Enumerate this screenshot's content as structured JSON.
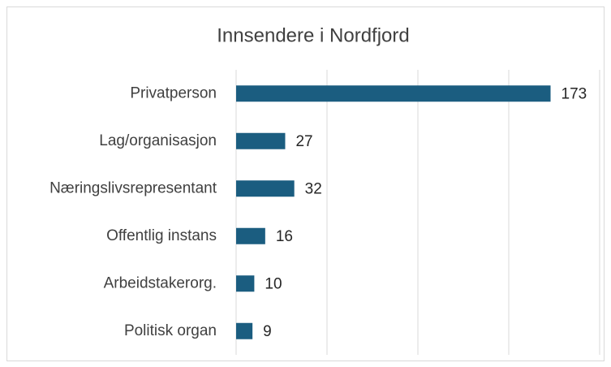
{
  "chart_data": {
    "type": "bar",
    "orientation": "horizontal",
    "title": "Innsendere i Nordfjord",
    "categories": [
      "Privatperson",
      "Lag/organisasjon",
      "Næringslivsrepresentant",
      "Offentlig instans",
      "Arbeidstakerorg.",
      "Politisk organ"
    ],
    "values": [
      173,
      27,
      32,
      16,
      10,
      9
    ],
    "color": "#1b5d80",
    "xlim": [
      0,
      200
    ],
    "xticks": [
      0,
      50,
      100,
      150,
      200
    ],
    "grid": true
  }
}
